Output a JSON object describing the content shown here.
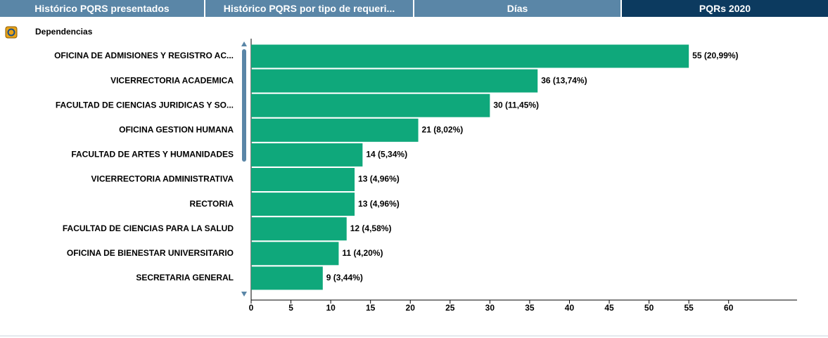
{
  "tabs": [
    "Histórico PQRS presentados",
    "Histórico PQRS por tipo de requeri...",
    "Días",
    "PQRs 2020"
  ],
  "panel_title": "Dependencias",
  "chart_data": {
    "type": "hbar",
    "categories": [
      "OFICINA DE ADMISIONES Y REGISTRO AC...",
      "VICERRECTORIA ACADEMICA",
      "FACULTAD DE CIENCIAS JURIDICAS Y SO...",
      "OFICINA GESTION HUMANA",
      "FACULTAD DE ARTES Y HUMANIDADES",
      "VICERRECTORIA ADMINISTRATIVA",
      "RECTORIA",
      "FACULTAD DE CIENCIAS PARA LA SALUD",
      "OFICINA DE BIENESTAR UNIVERSITARIO",
      "SECRETARIA GENERAL"
    ],
    "values": [
      55,
      36,
      30,
      21,
      14,
      13,
      13,
      12,
      11,
      9
    ],
    "value_labels": [
      "55 (20,99%)",
      "36 (13,74%)",
      "30 (11,45%)",
      "21 (8,02%)",
      "14 (5,34%)",
      "13 (4,96%)",
      "13 (4,96%)",
      "12 (4,58%)",
      "11 (4,20%)",
      "9 (3,44%)"
    ],
    "color": "#0fa87b",
    "xlim": [
      0,
      68.6
    ],
    "xticks": [
      0,
      5,
      10,
      15,
      20,
      25,
      30,
      35,
      40,
      45,
      50,
      55,
      60
    ]
  }
}
